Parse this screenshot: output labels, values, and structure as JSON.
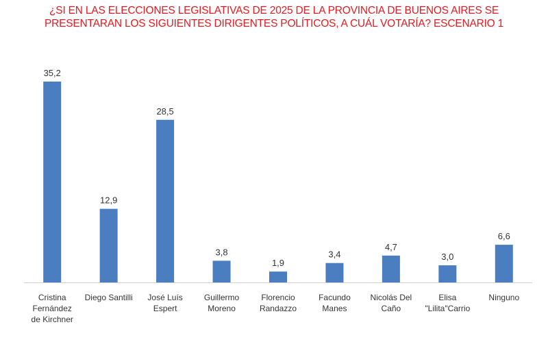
{
  "chart_data": {
    "type": "bar",
    "title_lines": [
      "¿SI EN LAS ELECCIONES LEGISLATIVAS DE 2025 DE LA PROVINCIA DE BUENOS AIRES SE",
      "PRESENTARAN LOS SIGUIENTES DIRIGENTES POLÍTICOS, A CUÁL VOTARÍA? ESCENARIO 1"
    ],
    "categories": [
      [
        "Cristina",
        "Fernández",
        "de Kirchner"
      ],
      [
        "Diego Santilli"
      ],
      [
        "José Luís",
        "Espert"
      ],
      [
        "Guillermo",
        "Moreno"
      ],
      [
        "Florencio",
        "Randazzo"
      ],
      [
        "Facundo",
        "Manes"
      ],
      [
        "Nicolás Del",
        "Caño"
      ],
      [
        "Elisa",
        "\"Lilita\"Carrio"
      ],
      [
        "Ninguno"
      ]
    ],
    "values": [
      35.2,
      12.9,
      28.5,
      3.8,
      1.9,
      3.4,
      4.7,
      3.0,
      6.6
    ],
    "value_labels": [
      "35,2",
      "12,9",
      "28,5",
      "3,8",
      "1,9",
      "3,4",
      "4,7",
      "3,0",
      "6,6"
    ],
    "xlabel": "",
    "ylabel": "",
    "ylim": [
      0,
      36
    ],
    "grid": false,
    "legend": "none",
    "colors": {
      "bar": "#4a7ec0",
      "title": "#e8191f",
      "axis": "#d0d0d0"
    }
  }
}
